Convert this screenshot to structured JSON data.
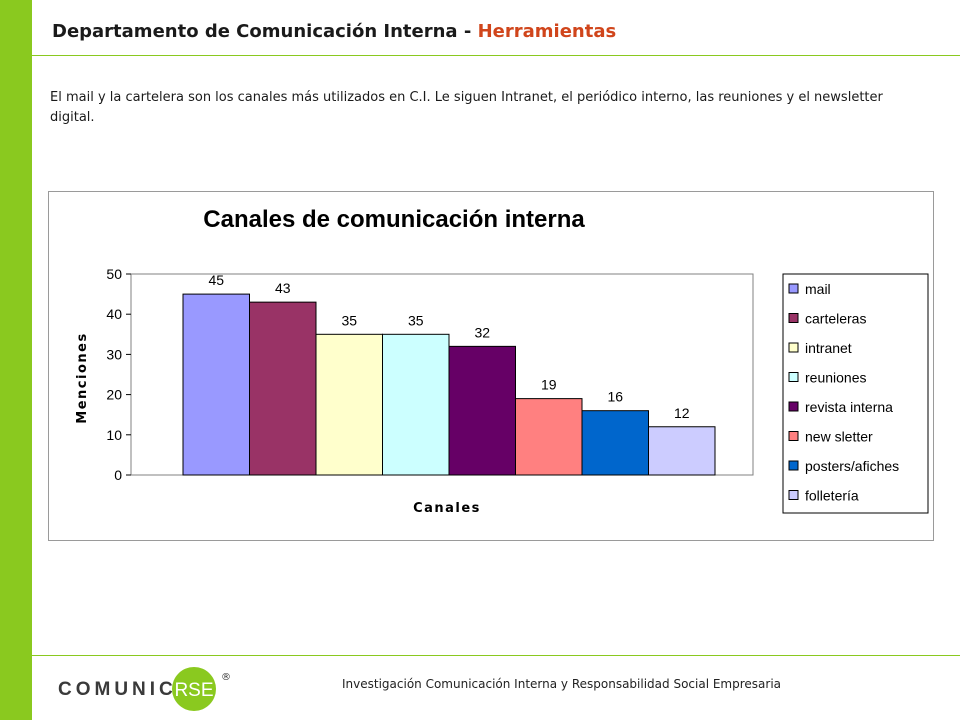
{
  "header": {
    "title_main": "Departamento de Comunicación Interna -",
    "title_accent": "Herramientas"
  },
  "intro": {
    "text": "El mail y la cartelera son los canales más utilizados en C.I. Le siguen Intranet,  el periódico interno, las reuniones y el newsletter digital."
  },
  "footer": {
    "text": "Investigación  Comunicación  Interna  y Responsabilidad  Social Empresaria"
  },
  "logo": {
    "text_left": "COMUNICA",
    "text_circle": "RSE",
    "mark": "®"
  },
  "colors": {
    "sidebar": "#8ac91f",
    "accent": "#d0451b"
  },
  "chart_data": {
    "type": "bar",
    "title": "Canales de comunicación interna",
    "xlabel": "Canales",
    "ylabel": "Menciones",
    "ylim": [
      0,
      50
    ],
    "yticks": [
      0,
      10,
      20,
      30,
      40,
      50
    ],
    "grid": false,
    "legend": "right",
    "categories": [
      "mail",
      "carteleras",
      "intranet",
      "reuniones",
      "revista interna",
      "new sletter",
      "posters/afiches",
      "folletería"
    ],
    "values": [
      45,
      43,
      35,
      35,
      32,
      19,
      16,
      12
    ],
    "colors": [
      "#9999ff",
      "#993366",
      "#ffffcc",
      "#ccffff",
      "#660066",
      "#ff8080",
      "#0066cc",
      "#ccccff"
    ]
  }
}
